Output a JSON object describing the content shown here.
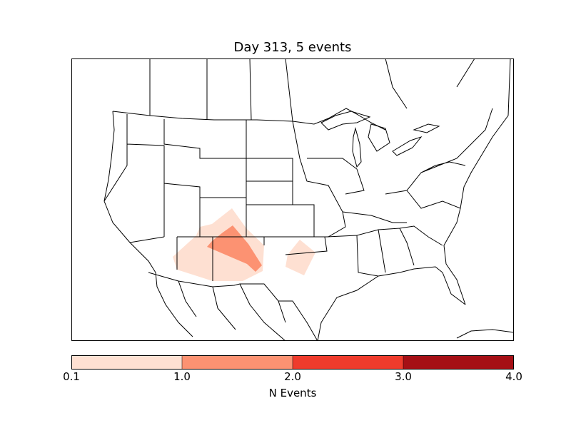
{
  "title": "Day 313, 5 events",
  "colorbar": {
    "label": "N Events",
    "bins": [
      {
        "from": 0.1,
        "to": 1.0,
        "color": "#fee0d2"
      },
      {
        "from": 1.0,
        "to": 2.0,
        "color": "#fc9272"
      },
      {
        "from": 2.0,
        "to": 3.0,
        "color": "#ef3b2c"
      },
      {
        "from": 3.0,
        "to": 4.0,
        "color": "#a50f15"
      }
    ],
    "tick_labels": [
      "0.1",
      "1.0",
      "2.0",
      "3.0",
      "4.0"
    ]
  },
  "map": {
    "region": "continental United States with state borders",
    "shaded_areas": [
      {
        "name": "Four Corners region (UT/CO/AZ/NM)",
        "level": "0.1-1.0"
      },
      {
        "name": "Northern New Mexico / southern Colorado",
        "level": "1.0-2.0"
      },
      {
        "name": "Texas / Oklahoma panhandle",
        "level": "0.1-1.0"
      }
    ]
  }
}
